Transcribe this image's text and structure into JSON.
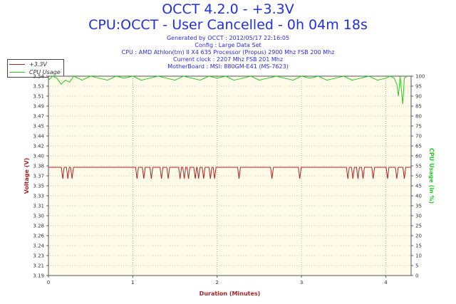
{
  "header": {
    "title_line1": "OCCT 4.2.0 - +3.3V",
    "title_line2": "CPU:OCCT - User Cancelled - 0h 04m 18s",
    "info": [
      "Generated by OCCT : 2012/05/17 22:16:05",
      "Config : Large Data Set",
      "CPU : AMD Athlon(tm) II X4 635 Processor (Propus) 2900 Mhz FSB 200 Mhz",
      "Current clock : 2207 Mhz FSB 201 Mhz",
      "MotherBoard : MSI: 880GM-E41 (MS-7623)"
    ]
  },
  "colors": {
    "title": "#1f2fe0",
    "voltage": "#aa2222",
    "cpu": "#22cc22",
    "plot_bg": "#fffbe8",
    "axis_x_label": "#aa2222",
    "axis_y_right": "#22cc22"
  },
  "chart_data": {
    "type": "line",
    "title": "OCCT 4.2.0 - +3.3V",
    "xlabel": "Duration (Minutes)",
    "ylabel": "Voltage (V)",
    "ylabel_right": "CPU Usage (in %)",
    "xlim": [
      0,
      4.3
    ],
    "ylim": [
      3.19,
      3.54
    ],
    "ylim_right": [
      0,
      100
    ],
    "x_ticks": [
      "0",
      "1",
      "2",
      "3",
      "4"
    ],
    "y_ticks": [
      "3.19",
      "3.21",
      "3.23",
      "3.24",
      "3.26",
      "3.28",
      "3.30",
      "3.31",
      "3.33",
      "3.35",
      "3.37",
      "3.38",
      "3.40",
      "3.42",
      "3.44",
      "3.45",
      "3.47",
      "3.49",
      "3.51",
      "3.53",
      "3.54"
    ],
    "y_ticks_right": [
      "0",
      "5",
      "10",
      "15",
      "20",
      "25",
      "30",
      "35",
      "40",
      "45",
      "50",
      "55",
      "60",
      "65",
      "70",
      "75",
      "80",
      "85",
      "90",
      "95",
      "100"
    ],
    "grid": true,
    "legend_position": "top-left",
    "series": [
      {
        "name": "+3.3V",
        "baseline": 3.38,
        "dip_value": 3.36,
        "dips_x": [
          0.17,
          0.23,
          0.28,
          1.05,
          1.13,
          1.22,
          1.34,
          1.42,
          1.56,
          1.61,
          1.66,
          1.74,
          1.78,
          1.84,
          1.92,
          1.97,
          2.26,
          2.65,
          2.98,
          3.55,
          3.61,
          3.67,
          3.73,
          3.85,
          4.02,
          4.13,
          4.22
        ]
      },
      {
        "name": "CPU Usage",
        "x": [
          0,
          0.05,
          0.1,
          0.15,
          0.2,
          0.25,
          0.3,
          0.35,
          0.4,
          0.5,
          0.6,
          0.7,
          0.8,
          0.9,
          1.0,
          1.1,
          1.2,
          1.3,
          1.4,
          1.5,
          1.6,
          1.7,
          1.8,
          1.9,
          2.0,
          2.1,
          2.2,
          2.3,
          2.4,
          2.5,
          2.6,
          2.7,
          2.8,
          2.9,
          3.0,
          3.1,
          3.2,
          3.3,
          3.4,
          3.5,
          3.6,
          3.7,
          3.8,
          3.9,
          4.0,
          4.05,
          4.1,
          4.13,
          4.15,
          4.17,
          4.2,
          4.22,
          4.25
        ],
        "values": [
          98,
          100,
          99,
          96,
          98,
          97,
          100,
          99,
          98,
          100,
          99,
          98,
          100,
          99,
          100,
          98,
          99,
          100,
          99,
          98,
          100,
          99,
          98,
          100,
          99,
          100,
          98,
          99,
          100,
          98,
          99,
          100,
          99,
          98,
          100,
          99,
          100,
          98,
          99,
          100,
          98,
          99,
          100,
          98,
          99,
          100,
          99,
          96,
          90,
          100,
          86,
          99,
          100
        ]
      }
    ]
  }
}
